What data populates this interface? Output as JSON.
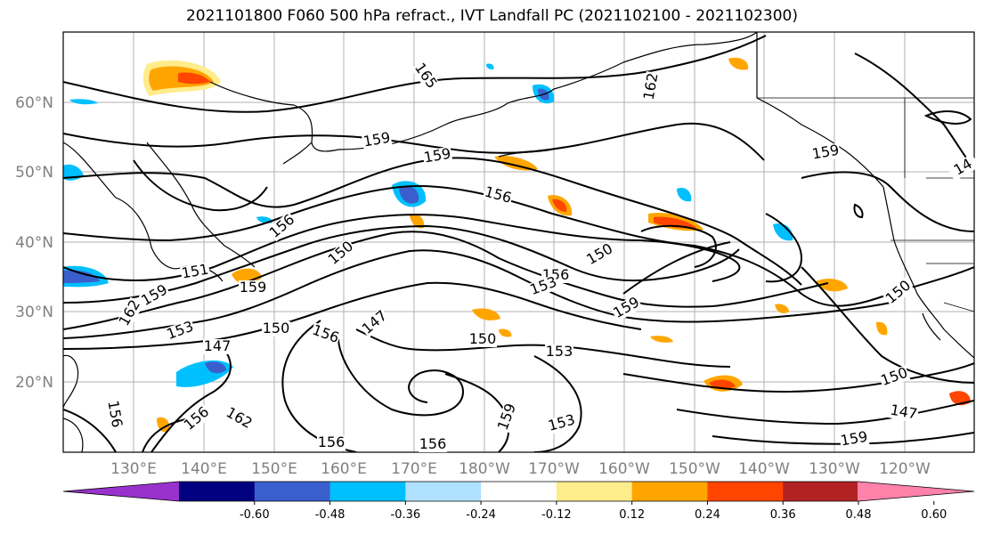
{
  "title": "2021101800 F060 500 hPa refract., IVT Landfall PC (2021102100 - 2021102300)",
  "lat_labels": [
    "60°N",
    "50°N",
    "40°N",
    "30°N",
    "20°N"
  ],
  "lon_labels": [
    "130°E",
    "140°E",
    "150°E",
    "160°E",
    "170°E",
    "180°W",
    "170°W",
    "160°W",
    "150°W",
    "140°W",
    "130°W",
    "120°W"
  ],
  "colorbar": {
    "colors": [
      "#9932CC",
      "#000080",
      "#3a5fcd",
      "#00bfff",
      "#b0e2ff",
      "#ffffff",
      "#ffec8b",
      "#ffa500",
      "#ff4500",
      "#b22222",
      "#ff82ab"
    ],
    "tick_labels": [
      "-0.60",
      "-0.48",
      "-0.36",
      "-0.24",
      "-0.12",
      "0.12",
      "0.24",
      "0.36",
      "0.48",
      "0.60"
    ]
  },
  "contour_labels": [
    {
      "text": "165"
    },
    {
      "text": "162"
    },
    {
      "text": "159"
    },
    {
      "text": "159"
    },
    {
      "text": "159"
    },
    {
      "text": "156"
    },
    {
      "text": "156"
    },
    {
      "text": "150"
    },
    {
      "text": "150"
    },
    {
      "text": "156"
    },
    {
      "text": "159"
    },
    {
      "text": "153"
    },
    {
      "text": "151"
    },
    {
      "text": "159"
    },
    {
      "text": "162"
    },
    {
      "text": "153"
    },
    {
      "text": "147"
    },
    {
      "text": "150"
    },
    {
      "text": "156"
    },
    {
      "text": "147"
    },
    {
      "text": "150"
    },
    {
      "text": "153"
    },
    {
      "text": "159"
    },
    {
      "text": "153"
    },
    {
      "text": "150"
    },
    {
      "text": "150"
    },
    {
      "text": "147"
    },
    {
      "text": "159"
    },
    {
      "text": "156"
    },
    {
      "text": "156"
    },
    {
      "text": "156"
    },
    {
      "text": "162"
    },
    {
      "text": "159"
    },
    {
      "text": "156"
    },
    {
      "text": "14"
    }
  ]
}
